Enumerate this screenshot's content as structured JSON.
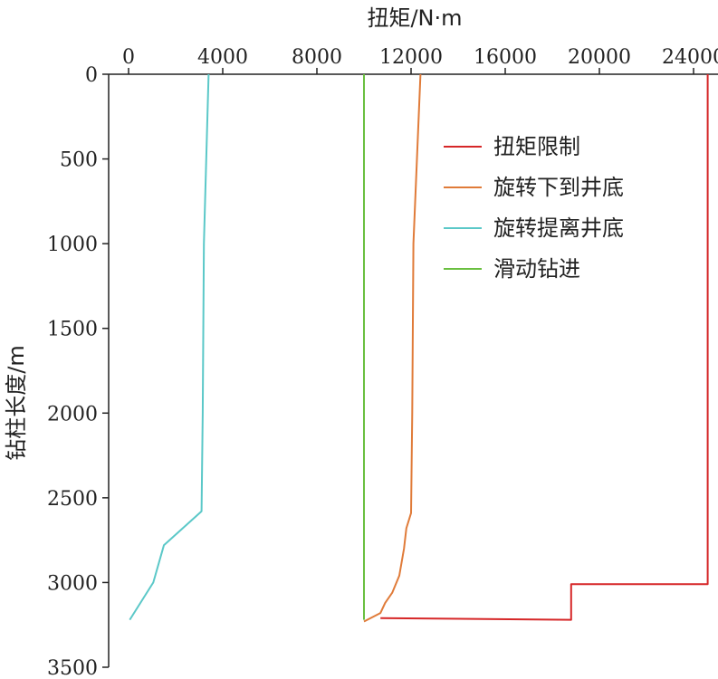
{
  "chart_data": {
    "type": "line",
    "title": "",
    "xlabel": "扭矩/N·m",
    "ylabel": "钻柱长度/m",
    "xlim": [
      -1500,
      25200
    ],
    "ylim": [
      0,
      3500
    ],
    "x_ticks": [
      0,
      4000,
      8000,
      12000,
      16000,
      20000,
      24000
    ],
    "y_ticks": [
      0,
      500,
      1000,
      1500,
      2000,
      2500,
      3000,
      3500
    ],
    "y_axis_inverted": true,
    "x_axis_position": "top",
    "grid": false,
    "legend_position": "top-right",
    "series": [
      {
        "name": "扭矩限制",
        "color": "#d62728",
        "points": [
          [
            24600,
            0
          ],
          [
            24600,
            3010
          ],
          [
            18800,
            3010
          ],
          [
            18800,
            3220
          ],
          [
            10700,
            3210
          ]
        ]
      },
      {
        "name": "旋转下到井底",
        "color": "#e07b39",
        "points": [
          [
            12400,
            0
          ],
          [
            12100,
            1000
          ],
          [
            12050,
            2000
          ],
          [
            12000,
            2590
          ],
          [
            11800,
            2680
          ],
          [
            11700,
            2800
          ],
          [
            11500,
            2960
          ],
          [
            11200,
            3060
          ],
          [
            10900,
            3120
          ],
          [
            10700,
            3180
          ],
          [
            10000,
            3230
          ]
        ]
      },
      {
        "name": "旋转提离井底",
        "color": "#5bc8c8",
        "points": [
          [
            3400,
            0
          ],
          [
            3200,
            1000
          ],
          [
            3150,
            2000
          ],
          [
            3100,
            2580
          ],
          [
            1500,
            2780
          ],
          [
            1050,
            3000
          ],
          [
            50,
            3220
          ]
        ]
      },
      {
        "name": "滑动钻进",
        "color": "#6abf40",
        "points": [
          [
            10000,
            0
          ],
          [
            10000,
            3220
          ]
        ]
      }
    ]
  }
}
